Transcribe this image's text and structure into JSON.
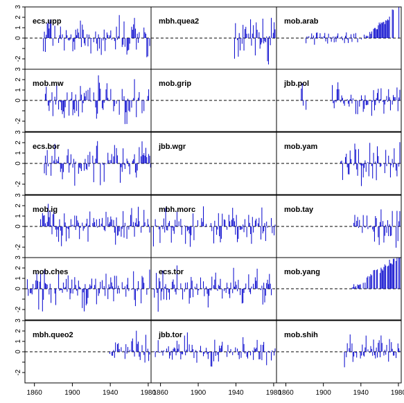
{
  "chart_data": {
    "type": "bar",
    "layout": {
      "rows": 6,
      "cols": 3
    },
    "x_range": [
      1850,
      1983
    ],
    "ylim": [
      -3,
      3
    ],
    "x_ticks": [
      1860,
      1900,
      1940,
      1980
    ],
    "y_ticks": [
      -2,
      -1,
      0,
      1,
      2,
      3
    ],
    "y_tick_labels": [
      {
        "value": 3,
        "text": "3"
      },
      {
        "value": 2,
        "text": "2"
      },
      {
        "value": 1,
        "text": "1"
      },
      {
        "value": 0,
        "text": "0"
      },
      {
        "value": -2,
        "text": "-2"
      }
    ],
    "zero_line": "dashed",
    "bar_color": "#0000cc",
    "panels": [
      {
        "name": "ecs.upp",
        "seed": 11,
        "segments": [
          {
            "from": 1869,
            "to": 1982,
            "amp": 1.3,
            "trend": 0.3
          }
        ]
      },
      {
        "name": "mbh.quea2",
        "seed": 12,
        "segments": [
          {
            "from": 1937,
            "to": 1981,
            "amp": 1.6,
            "trend": 0
          }
        ]
      },
      {
        "name": "mob.arab",
        "seed": 13,
        "segments": [
          {
            "from": 1880,
            "to": 1943,
            "amp": 0.5,
            "trend": 0
          },
          {
            "from": 1944,
            "to": 1981,
            "amp": 0.4,
            "trend": 2.4
          }
        ]
      },
      {
        "name": "mob.mw",
        "seed": 14,
        "segments": [
          {
            "from": 1870,
            "to": 1980,
            "amp": 1.4,
            "trend": 0
          }
        ]
      },
      {
        "name": "mob.grip",
        "seed": 15,
        "segments": []
      },
      {
        "name": "jbb.pol",
        "seed": 16,
        "segments": [
          {
            "from": 1875,
            "to": 1881,
            "amp": 1.5,
            "trend": 0
          },
          {
            "from": 1905,
            "to": 1981,
            "amp": 1.1,
            "trend": 0
          }
        ]
      },
      {
        "name": "ecs.bor",
        "seed": 17,
        "segments": [
          {
            "from": 1870,
            "to": 1982,
            "amp": 1.3,
            "trend": 0.2
          }
        ]
      },
      {
        "name": "jbb.wgr",
        "seed": 18,
        "segments": []
      },
      {
        "name": "mob.yam",
        "seed": 19,
        "segments": [
          {
            "from": 1918,
            "to": 1981,
            "amp": 1.3,
            "trend": 0
          }
        ]
      },
      {
        "name": "mob.ig",
        "seed": 20,
        "segments": [
          {
            "from": 1866,
            "to": 1981,
            "amp": 1.2,
            "trend": 0
          }
        ]
      },
      {
        "name": "mbh.morc",
        "seed": 21,
        "segments": [
          {
            "from": 1852,
            "to": 1981,
            "amp": 1.4,
            "trend": 0
          }
        ]
      },
      {
        "name": "mob.tay",
        "seed": 22,
        "segments": [
          {
            "from": 1932,
            "to": 1981,
            "amp": 1.3,
            "trend": 0
          }
        ]
      },
      {
        "name": "mob.ches",
        "seed": 23,
        "segments": [
          {
            "from": 1852,
            "to": 1981,
            "amp": 1.3,
            "trend": 0
          }
        ]
      },
      {
        "name": "ecs.tor",
        "seed": 24,
        "segments": [
          {
            "from": 1852,
            "to": 1981,
            "amp": 1.2,
            "trend": 0
          }
        ]
      },
      {
        "name": "mob.yang",
        "seed": 25,
        "segments": [
          {
            "from": 1930,
            "to": 1981,
            "amp": 0.6,
            "trend": 2.5
          }
        ]
      },
      {
        "name": "mbh.queo2",
        "seed": 26,
        "segments": [
          {
            "from": 1938,
            "to": 1981,
            "amp": 1.2,
            "trend": 0.3
          }
        ]
      },
      {
        "name": "jbb.tor",
        "seed": 27,
        "segments": [
          {
            "from": 1852,
            "to": 1981,
            "amp": 0.9,
            "trend": 0
          }
        ]
      },
      {
        "name": "mob.shih",
        "seed": 28,
        "segments": [
          {
            "from": 1920,
            "to": 1981,
            "amp": 1.0,
            "trend": 0
          }
        ]
      }
    ]
  }
}
